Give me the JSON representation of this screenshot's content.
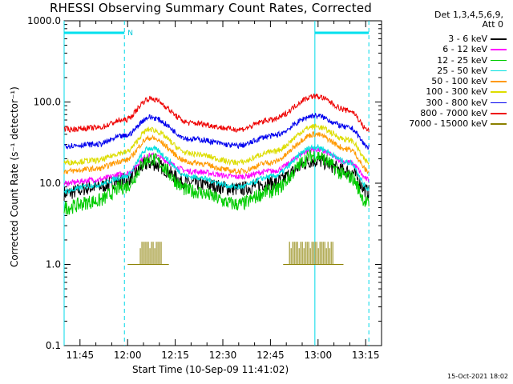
{
  "chart_data": {
    "type": "line",
    "title": "RHESSI Observing Summary Count Rates, Corrected",
    "detectors": "Det 1,3,4,5,6,9,",
    "attenuator": "Att 0",
    "xlabel": "Start Time (10-Sep-09 11:41:02)",
    "ylabel": "Corrected Count Rate (s⁻¹ detector⁻¹)",
    "yscale": "log",
    "ylim": [
      0.1,
      1000.0
    ],
    "xlim": [
      "11:40",
      "13:20"
    ],
    "y_ticks": [
      "1000.0",
      "100.0",
      "10.0",
      "1.0",
      "0.1"
    ],
    "x_ticks": [
      "11:45",
      "12:00",
      "12:15",
      "12:30",
      "12:45",
      "13:00",
      "13:15"
    ],
    "timestamp": "15-Oct-2021 18:02",
    "night_marker_label": "N",
    "night_intervals": [
      [
        "11:40",
        "11:59"
      ],
      [
        "12:59",
        "13:16"
      ]
    ],
    "vertical_markers": [
      "11:40",
      "11:59",
      "12:59",
      "13:16"
    ],
    "series": [
      {
        "name": "3 - 6 keV",
        "color": "#000000",
        "x": [
          "11:40",
          "11:50",
          "11:59",
          "12:07",
          "12:20",
          "12:35",
          "12:45",
          "12:59",
          "13:10",
          "13:16"
        ],
        "values": [
          7.5,
          9.0,
          11,
          17.5,
          10,
          8.5,
          10,
          19,
          14,
          7.8
        ]
      },
      {
        "name": "6 - 12 keV",
        "color": "#ff00ff",
        "x": [
          "11:40",
          "11:50",
          "11:59",
          "12:07",
          "12:20",
          "12:35",
          "12:45",
          "12:59",
          "13:10",
          "13:16"
        ],
        "values": [
          10,
          11,
          13,
          22,
          14,
          12,
          14,
          26,
          18,
          11
        ]
      },
      {
        "name": "12 - 25 keV",
        "color": "#00cc00",
        "x": [
          "11:40",
          "11:50",
          "11:59",
          "12:07",
          "12:20",
          "12:35",
          "12:45",
          "12:59",
          "13:10",
          "13:16"
        ],
        "values": [
          5,
          6,
          9,
          20,
          8,
          5.5,
          8,
          22,
          12,
          5.5
        ]
      },
      {
        "name": "25 - 50 keV",
        "color": "#00e0e0",
        "x": [
          "11:40",
          "11:50",
          "11:59",
          "12:07",
          "12:20",
          "12:35",
          "12:45",
          "12:59",
          "13:10",
          "13:16"
        ],
        "values": [
          8,
          9.5,
          12,
          27,
          12,
          9,
          12,
          28,
          18,
          8.5
        ]
      },
      {
        "name": "50 - 100 keV",
        "color": "#ff9900",
        "x": [
          "11:40",
          "11:50",
          "11:59",
          "12:07",
          "12:20",
          "12:35",
          "12:45",
          "12:59",
          "13:10",
          "13:16"
        ],
        "values": [
          14,
          15,
          19,
          36,
          18,
          14,
          18,
          40,
          26,
          14
        ]
      },
      {
        "name": "100 - 300 keV",
        "color": "#dddd00",
        "x": [
          "11:40",
          "11:50",
          "11:59",
          "12:07",
          "12:20",
          "12:35",
          "12:45",
          "12:59",
          "13:10",
          "13:16"
        ],
        "values": [
          18,
          19,
          24,
          46,
          23,
          18,
          24,
          50,
          34,
          18
        ]
      },
      {
        "name": "300 - 800 keV",
        "color": "#0000ee",
        "x": [
          "11:40",
          "11:50",
          "11:59",
          "12:07",
          "12:20",
          "12:35",
          "12:45",
          "12:59",
          "13:10",
          "13:16"
        ],
        "values": [
          29,
          30,
          38,
          65,
          35,
          29,
          38,
          68,
          48,
          28
        ]
      },
      {
        "name": "800 - 7000 keV",
        "color": "#ee0000",
        "x": [
          "11:40",
          "11:50",
          "11:59",
          "12:07",
          "12:20",
          "12:35",
          "12:45",
          "12:59",
          "13:10",
          "13:16"
        ],
        "values": [
          46,
          48,
          60,
          110,
          55,
          46,
          60,
          118,
          78,
          45
        ]
      },
      {
        "name": "7000 - 15000 keV",
        "color": "#8b8000",
        "x": [
          "12:00",
          "12:04",
          "12:11",
          "12:13",
          "12:49",
          "12:51",
          "13:05",
          "13:08"
        ],
        "values": [
          1.0,
          1.9,
          1.9,
          1.0,
          1.0,
          1.9,
          1.9,
          1.0
        ]
      }
    ]
  }
}
